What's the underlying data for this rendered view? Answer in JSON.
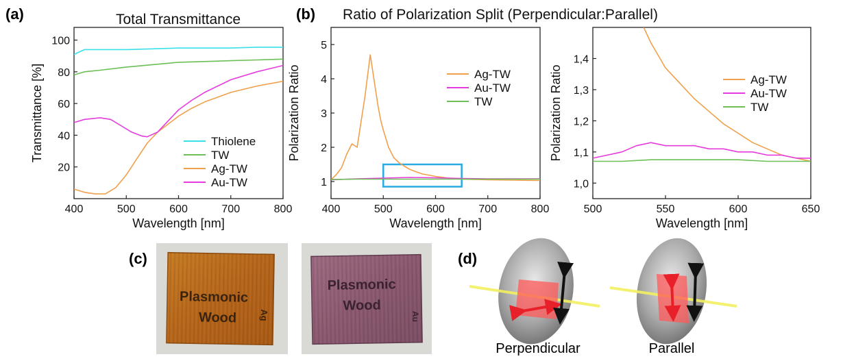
{
  "panels": {
    "a": "(a)",
    "b": "(b)",
    "c": "(c)",
    "d": "(d)"
  },
  "chart_data": [
    {
      "type": "line",
      "panel": "(a)",
      "title": "Total Transmittance",
      "xlabel": "Wavelength [nm]",
      "ylabel": "Transmittance [%]",
      "xlim": [
        400,
        800
      ],
      "ylim": [
        0,
        108
      ],
      "xticks": [
        400,
        500,
        600,
        700,
        800
      ],
      "yticks": [
        20,
        40,
        60,
        80,
        100
      ],
      "legend": "bottom-right",
      "series": [
        {
          "name": "Thiolene",
          "color": "#38e0ea",
          "x": [
            400,
            420,
            450,
            500,
            550,
            600,
            650,
            700,
            750,
            800
          ],
          "y": [
            91,
            94,
            94,
            94,
            94.5,
            95,
            95,
            95,
            95.5,
            95.5
          ]
        },
        {
          "name": "TW",
          "color": "#6cbf56",
          "x": [
            400,
            420,
            450,
            500,
            550,
            600,
            650,
            700,
            750,
            800
          ],
          "y": [
            78,
            80,
            81,
            83,
            84.5,
            86,
            86.5,
            87,
            87.5,
            88
          ]
        },
        {
          "name": "Ag-TW",
          "color": "#f0a04b",
          "x": [
            400,
            420,
            440,
            460,
            480,
            500,
            520,
            540,
            560,
            580,
            600,
            625,
            650,
            675,
            700,
            750,
            800
          ],
          "y": [
            6,
            4,
            3,
            3,
            7,
            15,
            25,
            35,
            42,
            47,
            52,
            57,
            61,
            64,
            67,
            71,
            74
          ]
        },
        {
          "name": "Au-TW",
          "color": "#e63bdc",
          "x": [
            400,
            420,
            450,
            470,
            490,
            510,
            530,
            540,
            560,
            580,
            600,
            625,
            650,
            675,
            700,
            750,
            800
          ],
          "y": [
            48,
            50,
            51,
            50,
            46,
            42,
            39.5,
            39,
            42,
            49,
            56,
            62,
            67,
            71,
            75,
            80,
            84
          ]
        }
      ]
    },
    {
      "type": "line",
      "panel": "(b)",
      "title": "Ratio of Polarization Split (Perpendicular:Parallel)",
      "xlabel": "Wavelength [nm]",
      "ylabel": "Polarization Ratio",
      "xlim": [
        400,
        800
      ],
      "ylim": [
        0.5,
        5.5
      ],
      "xticks": [
        400,
        500,
        600,
        700,
        800
      ],
      "yticks": [
        1,
        2,
        3,
        4,
        5
      ],
      "legend": "top-right",
      "highlight_box": {
        "x": [
          500,
          650
        ],
        "y": [
          0.85,
          1.5
        ],
        "color": "#29aae1"
      },
      "series": [
        {
          "name": "Ag-TW",
          "color": "#f0a04b",
          "x": [
            400,
            410,
            420,
            430,
            440,
            450,
            455,
            460,
            465,
            470,
            475,
            478,
            480,
            485,
            490,
            495,
            500,
            510,
            520,
            530,
            540,
            550,
            560,
            575,
            600,
            625,
            650,
            700,
            750,
            800
          ],
          "y": [
            1.05,
            1.2,
            1.4,
            1.8,
            2.1,
            2.0,
            2.5,
            3.0,
            3.5,
            4.1,
            4.7,
            4.4,
            4.2,
            3.7,
            3.2,
            2.8,
            2.5,
            2.0,
            1.7,
            1.55,
            1.45,
            1.36,
            1.3,
            1.22,
            1.15,
            1.1,
            1.07,
            1.05,
            1.04,
            1.03
          ]
        },
        {
          "name": "Au-TW",
          "color": "#e63bdc",
          "x": [
            400,
            450,
            500,
            550,
            600,
            650,
            700,
            750,
            800
          ],
          "y": [
            1.05,
            1.08,
            1.1,
            1.12,
            1.11,
            1.09,
            1.08,
            1.08,
            1.08
          ]
        },
        {
          "name": "TW",
          "color": "#6cbf56",
          "x": [
            400,
            450,
            500,
            550,
            600,
            650,
            700,
            750,
            800
          ],
          "y": [
            1.06,
            1.07,
            1.07,
            1.07,
            1.07,
            1.07,
            1.07,
            1.07,
            1.07
          ]
        }
      ]
    },
    {
      "type": "line",
      "panel": "zoom",
      "title": "",
      "xlabel": "Wavelength [nm]",
      "ylabel": "Polarization Ratio",
      "xlim": [
        500,
        650
      ],
      "ylim": [
        0.95,
        1.5
      ],
      "xticks": [
        500,
        550,
        600,
        650
      ],
      "yticks": [
        1.0,
        1.1,
        1.2,
        1.3,
        1.4
      ],
      "ytick_labels": [
        "1,0",
        "1,1",
        "1,2",
        "1,3",
        "1,4"
      ],
      "legend": "top-right",
      "series": [
        {
          "name": "Ag-TW",
          "color": "#f0a04b",
          "x": [
            535,
            540,
            545,
            550,
            560,
            570,
            580,
            590,
            600,
            610,
            620,
            630,
            640,
            650
          ],
          "y": [
            1.5,
            1.45,
            1.41,
            1.37,
            1.32,
            1.27,
            1.23,
            1.19,
            1.16,
            1.13,
            1.11,
            1.09,
            1.08,
            1.07
          ]
        },
        {
          "name": "Au-TW",
          "color": "#e63bdc",
          "x": [
            500,
            510,
            520,
            530,
            540,
            550,
            560,
            570,
            580,
            590,
            600,
            610,
            620,
            630,
            640,
            650
          ],
          "y": [
            1.08,
            1.09,
            1.1,
            1.12,
            1.13,
            1.12,
            1.12,
            1.12,
            1.11,
            1.11,
            1.1,
            1.1,
            1.09,
            1.09,
            1.08,
            1.08
          ]
        },
        {
          "name": "TW",
          "color": "#6cbf56",
          "x": [
            500,
            520,
            540,
            560,
            580,
            600,
            620,
            640,
            650
          ],
          "y": [
            1.07,
            1.07,
            1.075,
            1.075,
            1.075,
            1.075,
            1.07,
            1.07,
            1.07
          ]
        }
      ]
    }
  ],
  "photos": {
    "left": {
      "text_line1": "Plasmonic",
      "text_line2": "Wood",
      "tag": "Ag",
      "wood_color": "#b96a18"
    },
    "right": {
      "text_line1": "Plasmonic",
      "text_line2": "Wood",
      "tag": "Au",
      "wood_color": "#8e5c73"
    }
  },
  "diagram": {
    "perpendicular_label": "Perpendicular",
    "parallel_label": "Parallel"
  }
}
